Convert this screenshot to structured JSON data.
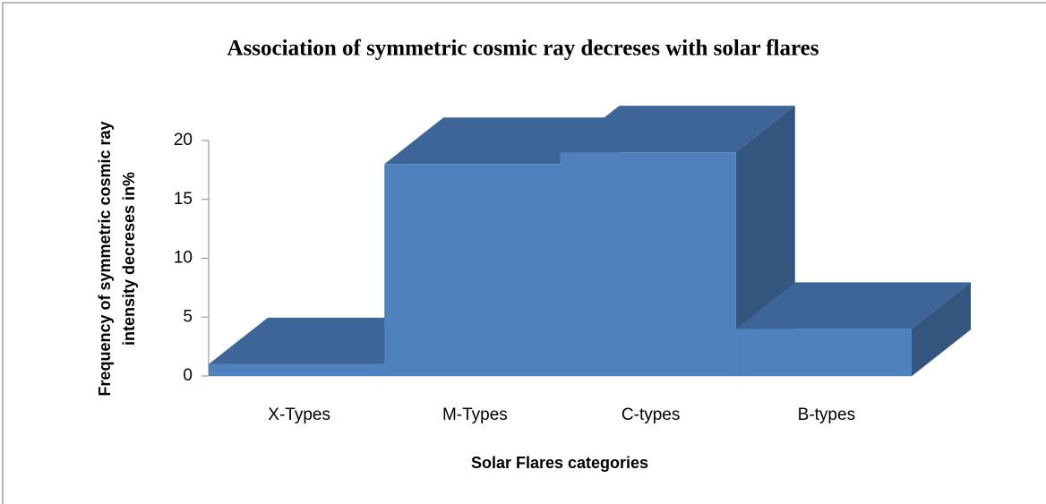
{
  "chart_data": {
    "type": "bar3d",
    "title": "Association of symmetric cosmic ray decreses with solar flares",
    "y_label": [
      "Frequency of symmetric cosmic ray",
      "intensity decreses in%"
    ],
    "x_label": "Solar Flares categories",
    "categories": [
      "X-Types",
      "M-Types",
      "C-types",
      "B-types"
    ],
    "values": [
      1,
      18,
      19,
      4
    ],
    "color": "#4f81bd",
    "ylim": [
      0,
      20
    ],
    "yticks": [
      0,
      5,
      10,
      15,
      20
    ]
  }
}
